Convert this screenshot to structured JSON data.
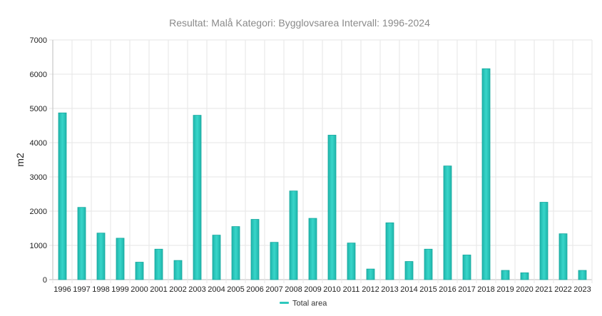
{
  "chart_data": {
    "type": "bar",
    "title": "Resultat: Malå Kategori: Bygglovsarea Intervall: 1996-2024",
    "xlabel": "",
    "ylabel": "m2",
    "ylim": [
      0,
      7000
    ],
    "yticks": [
      0,
      1000,
      2000,
      3000,
      4000,
      5000,
      6000,
      7000
    ],
    "grid": true,
    "legend_position": "bottom-center",
    "categories": [
      "1996",
      "1997",
      "1998",
      "1999",
      "2000",
      "2001",
      "2002",
      "2003",
      "2004",
      "2005",
      "2006",
      "2007",
      "2008",
      "2009",
      "2010",
      "2011",
      "2012",
      "2013",
      "2014",
      "2015",
      "2016",
      "2017",
      "2018",
      "2019",
      "2020",
      "2021",
      "2022",
      "2023"
    ],
    "series": [
      {
        "name": "Total area",
        "color": "#2ec8bd",
        "values": [
          4870,
          2110,
          1360,
          1210,
          510,
          890,
          560,
          4800,
          1300,
          1550,
          1760,
          1090,
          2590,
          1790,
          4220,
          1070,
          310,
          1660,
          530,
          890,
          3320,
          720,
          6160,
          270,
          200,
          2260,
          1340,
          270
        ]
      }
    ]
  }
}
